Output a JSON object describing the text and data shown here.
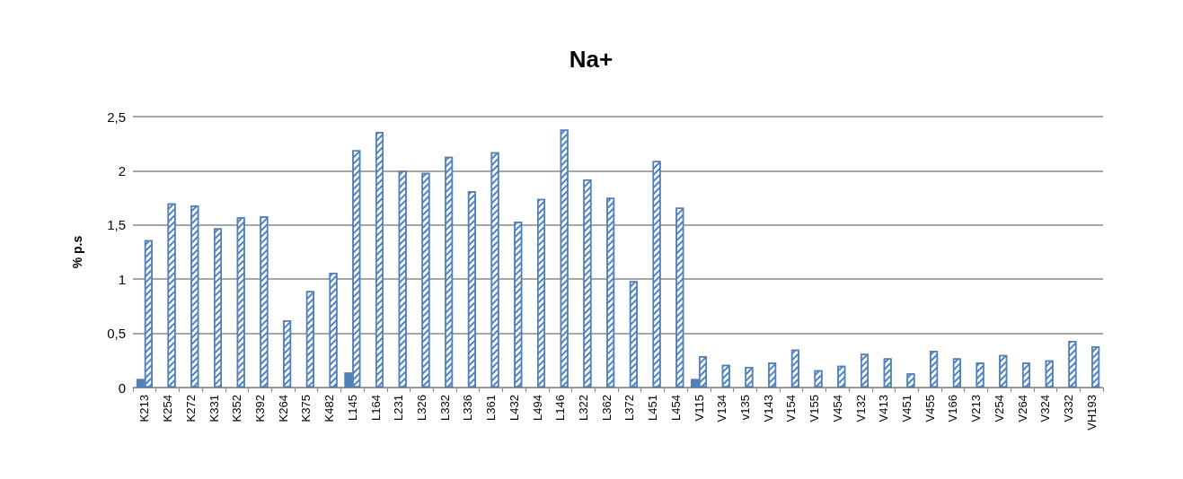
{
  "chart_data": {
    "type": "bar",
    "title": "Na+",
    "ylabel": "% p.s",
    "categories": [
      "K213",
      "K254",
      "K272",
      "K331",
      "K352",
      "K392",
      "K264",
      "K375",
      "K482",
      "L145",
      "L164",
      "L231",
      "L326",
      "L332",
      "L336",
      "L361",
      "L432",
      "L494",
      "L146",
      "L322",
      "L362",
      "L372",
      "L451",
      "L454",
      "V115",
      "V134",
      "v135",
      "V143",
      "V154",
      "V155",
      "V454",
      "V132",
      "V413",
      "V451",
      "V455",
      "V166",
      "V213",
      "V254",
      "V264",
      "V324",
      "V332",
      "VH193"
    ],
    "series": [
      {
        "color": "#4f81bd",
        "values": [
          0.08,
          null,
          null,
          null,
          null,
          null,
          null,
          null,
          null,
          0.14,
          null,
          null,
          null,
          null,
          null,
          null,
          null,
          null,
          null,
          null,
          null,
          null,
          null,
          null,
          0.08,
          null,
          null,
          null,
          null,
          null,
          null,
          null,
          null,
          null,
          null,
          null,
          null,
          null,
          null,
          null,
          null,
          null
        ]
      },
      {
        "color": "#4f81bd",
        "values": [
          1.36,
          1.7,
          1.68,
          1.47,
          1.57,
          1.58,
          0.62,
          0.89,
          1.06,
          2.19,
          2.36,
          2.0,
          1.98,
          2.13,
          1.81,
          2.17,
          1.53,
          1.74,
          2.38,
          1.92,
          1.75,
          0.98,
          2.09,
          1.66,
          0.29,
          0.21,
          0.19,
          0.23,
          0.35,
          0.16,
          0.2,
          0.31,
          0.27,
          0.13,
          0.34,
          0.27,
          0.23,
          0.3,
          0.23,
          0.25,
          0.43,
          0.38
        ]
      }
    ],
    "ylim": [
      0,
      2.5
    ],
    "yticks": [
      0,
      {
        "value": 0.5,
        "label": "0,5"
      },
      1,
      {
        "value": 1.5,
        "label": "1,5"
      },
      2,
      {
        "value": 2.5,
        "label": "2,5"
      }
    ],
    "grid": "y"
  }
}
